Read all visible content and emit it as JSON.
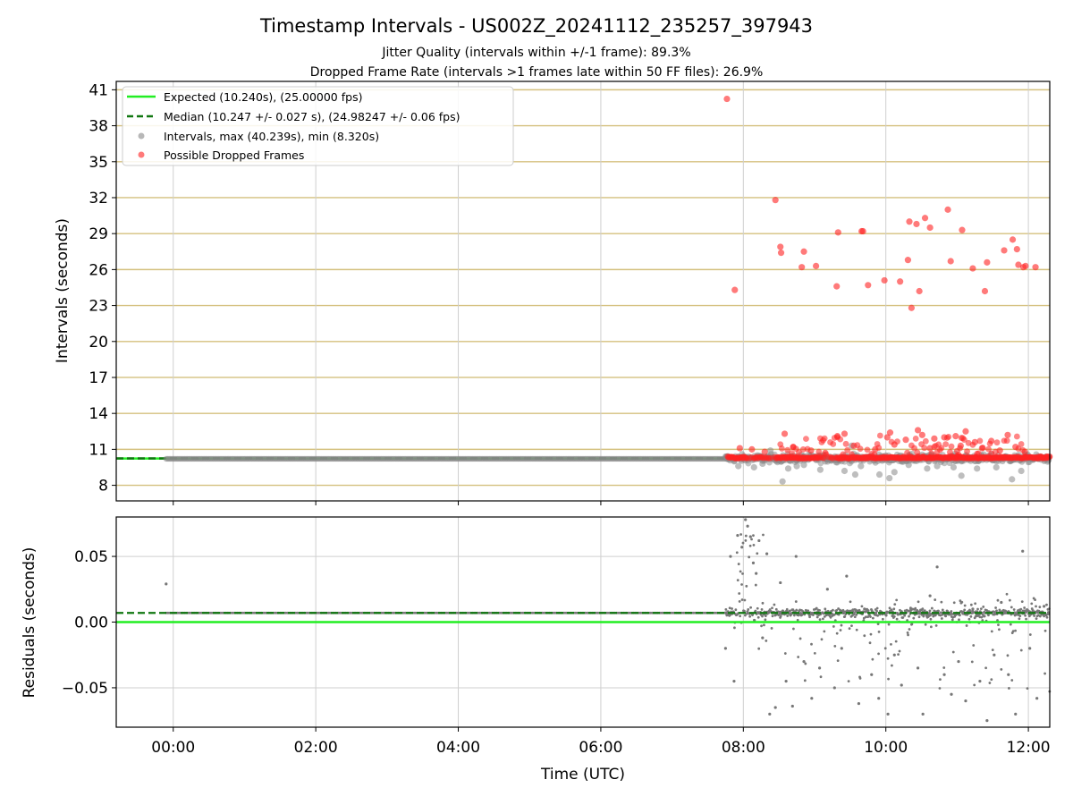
{
  "chart_data": [
    {
      "type": "scatter",
      "title": "Timestamp Intervals - US002Z_20241112_235257_397943",
      "subtitles": [
        "Jitter Quality (intervals within +/-1 frame): 89.3%",
        "Dropped Frame Rate (intervals >1 frames late within 50 FF files): 26.9%"
      ],
      "ylabel": "Intervals (seconds)",
      "xlabel": "",
      "xlim_hours": [
        -0.8,
        12.3
      ],
      "ylim": [
        6.7,
        41.7
      ],
      "yticks": [
        8,
        11,
        14,
        17,
        20,
        23,
        26,
        29,
        32,
        35,
        38,
        41
      ],
      "ytick_labels": [
        "8",
        "11",
        "14",
        "17",
        "20",
        "23",
        "26",
        "29",
        "32",
        "35",
        "38",
        "41"
      ],
      "grid": "on",
      "legend_position": "upper-left",
      "legend": [
        {
          "label": "Expected (10.240s), (25.00000 fps)",
          "kind": "line",
          "color": "#22ee22"
        },
        {
          "label": "Median (10.247 +/- 0.027 s), (24.98247 +/- 0.06 fps)",
          "kind": "dashed",
          "color": "#117711"
        },
        {
          "label": "Intervals, max (40.239s), min (8.320s)",
          "kind": "marker",
          "color": "#888888"
        },
        {
          "label": "Possible Dropped Frames",
          "kind": "marker",
          "color": "#ff2222"
        }
      ],
      "expected_interval": 10.24,
      "median_interval": 10.247,
      "series": [
        {
          "name": "Possible Dropped Frames",
          "color": "#ff2222",
          "points": [
            [
              7.77,
              40.24
            ],
            [
              7.88,
              24.3
            ],
            [
              8.45,
              31.8
            ],
            [
              8.52,
              27.9
            ],
            [
              8.53,
              27.4
            ],
            [
              8.82,
              26.2
            ],
            [
              8.85,
              27.5
            ],
            [
              9.02,
              26.3
            ],
            [
              9.31,
              24.6
            ],
            [
              9.33,
              29.1
            ],
            [
              9.66,
              29.2
            ],
            [
              9.68,
              29.2
            ],
            [
              9.75,
              24.7
            ],
            [
              9.98,
              25.1
            ],
            [
              10.2,
              25.0
            ],
            [
              10.31,
              26.8
            ],
            [
              10.33,
              30.0
            ],
            [
              10.36,
              22.8
            ],
            [
              10.43,
              29.8
            ],
            [
              10.47,
              24.2
            ],
            [
              10.55,
              30.3
            ],
            [
              10.62,
              29.5
            ],
            [
              10.87,
              31.0
            ],
            [
              10.91,
              26.7
            ],
            [
              11.07,
              29.3
            ],
            [
              11.22,
              26.1
            ],
            [
              11.39,
              24.2
            ],
            [
              11.42,
              26.6
            ],
            [
              11.66,
              27.6
            ],
            [
              11.78,
              28.5
            ],
            [
              11.84,
              27.7
            ],
            [
              11.86,
              26.4
            ],
            [
              11.93,
              26.2
            ],
            [
              11.96,
              26.3
            ],
            [
              12.1,
              26.2
            ],
            [
              8.58,
              12.3
            ],
            [
              9.32,
              12.1
            ],
            [
              9.42,
              12.3
            ],
            [
              10.02,
              12.0
            ],
            [
              10.06,
              12.4
            ],
            [
              10.28,
              11.8
            ],
            [
              10.45,
              12.6
            ],
            [
              10.51,
              12.2
            ],
            [
              10.68,
              11.9
            ],
            [
              10.82,
              12.0
            ],
            [
              10.98,
              12.1
            ],
            [
              11.12,
              12.5
            ],
            [
              11.25,
              11.6
            ],
            [
              11.48,
              11.7
            ],
            [
              11.71,
              12.2
            ],
            [
              7.95,
              11.1
            ],
            [
              8.12,
              11.0
            ],
            [
              8.3,
              10.8
            ],
            [
              8.7,
              11.2
            ],
            [
              8.95,
              10.9
            ],
            [
              9.15,
              10.7
            ],
            [
              9.55,
              11.3
            ],
            [
              9.85,
              11.0
            ],
            [
              10.12,
              11.4
            ],
            [
              10.62,
              11.1
            ],
            [
              11.05,
              11.3
            ],
            [
              11.35,
              11.1
            ],
            [
              11.6,
              10.9
            ],
            [
              11.82,
              11.2
            ],
            [
              11.95,
              10.8
            ]
          ]
        },
        {
          "name": "Intervals, max (40.239s), min (8.320s)",
          "color": "#888888",
          "points": [
            [
              8.15,
              9.5
            ],
            [
              8.38,
              10.9
            ],
            [
              8.55,
              8.32
            ],
            [
              8.63,
              9.4
            ],
            [
              8.75,
              9.6
            ],
            [
              9.08,
              9.3
            ],
            [
              9.42,
              9.2
            ],
            [
              9.52,
              11.3
            ],
            [
              9.57,
              8.9
            ],
            [
              9.91,
              8.9
            ],
            [
              10.05,
              8.6
            ],
            [
              10.12,
              9.1
            ],
            [
              10.58,
              9.4
            ],
            [
              10.72,
              9.6
            ],
            [
              10.95,
              9.5
            ],
            [
              11.06,
              8.8
            ],
            [
              11.28,
              9.4
            ],
            [
              11.55,
              9.5
            ],
            [
              11.77,
              8.5
            ],
            [
              11.9,
              9.2
            ],
            [
              7.93,
              9.6
            ],
            [
              8.27,
              9.8
            ],
            [
              8.85,
              9.7
            ],
            [
              9.65,
              9.6
            ],
            [
              10.32,
              9.7
            ]
          ]
        }
      ]
    },
    {
      "type": "scatter",
      "ylabel": "Residuals (seconds)",
      "xlabel": "Time (UTC)",
      "xlim_hours": [
        -0.8,
        12.3
      ],
      "ylim": [
        -0.08,
        0.08
      ],
      "yticks": [
        -0.05,
        0,
        0.05
      ],
      "ytick_labels": [
        "−0.05",
        "0.00",
        "0.05"
      ],
      "xtick_labels": [
        "00:00",
        "02:00",
        "04:00",
        "06:00",
        "08:00",
        "10:00",
        "12:00"
      ],
      "xticks_hours": [
        0,
        2,
        4,
        6,
        8,
        10,
        12
      ],
      "grid": "on",
      "expected_residual": 0,
      "median_residual": 0.007,
      "series": [
        {
          "name": "",
          "color": "#777777",
          "points": [
            [
              -0.1,
              0.029
            ],
            [
              7.75,
              -0.02
            ],
            [
              7.82,
              0.05
            ],
            [
              7.87,
              -0.045
            ],
            [
              7.92,
              0.066
            ],
            [
              7.98,
              0.057
            ],
            [
              8.03,
              0.078
            ],
            [
              8.06,
              0.073
            ],
            [
              8.1,
              0.065
            ],
            [
              8.14,
              0.045
            ],
            [
              8.18,
              0.037
            ],
            [
              8.22,
              0.062
            ],
            [
              8.27,
              -0.012
            ],
            [
              8.33,
              0.052
            ],
            [
              8.37,
              -0.07
            ],
            [
              8.45,
              -0.065
            ],
            [
              8.52,
              0.03
            ],
            [
              8.6,
              -0.045
            ],
            [
              8.69,
              -0.064
            ],
            [
              8.74,
              0.05
            ],
            [
              8.85,
              -0.03
            ],
            [
              8.96,
              -0.058
            ],
            [
              9.07,
              -0.035
            ],
            [
              9.18,
              0.025
            ],
            [
              9.28,
              -0.05
            ],
            [
              9.38,
              -0.02
            ],
            [
              9.45,
              0.035
            ],
            [
              9.62,
              -0.062
            ],
            [
              9.7,
              0.01
            ],
            [
              9.8,
              -0.04
            ],
            [
              9.9,
              -0.058
            ],
            [
              10.03,
              -0.07
            ],
            [
              10.12,
              -0.025
            ],
            [
              10.22,
              -0.048
            ],
            [
              10.35,
              0.01
            ],
            [
              10.45,
              -0.035
            ],
            [
              10.52,
              -0.07
            ],
            [
              10.62,
              0.02
            ],
            [
              10.72,
              0.042
            ],
            [
              10.82,
              -0.04
            ],
            [
              10.92,
              -0.055
            ],
            [
              11.02,
              -0.03
            ],
            [
              11.12,
              -0.06
            ],
            [
              11.22,
              0.01
            ],
            [
              11.32,
              -0.045
            ],
            [
              11.42,
              -0.075
            ],
            [
              11.52,
              -0.025
            ],
            [
              11.62,
              0.015
            ],
            [
              11.72,
              -0.04
            ],
            [
              11.82,
              -0.07
            ],
            [
              11.92,
              0.054
            ],
            [
              12.02,
              -0.02
            ],
            [
              12.12,
              -0.058
            ],
            [
              12.22,
              0.012
            ]
          ]
        }
      ]
    }
  ]
}
